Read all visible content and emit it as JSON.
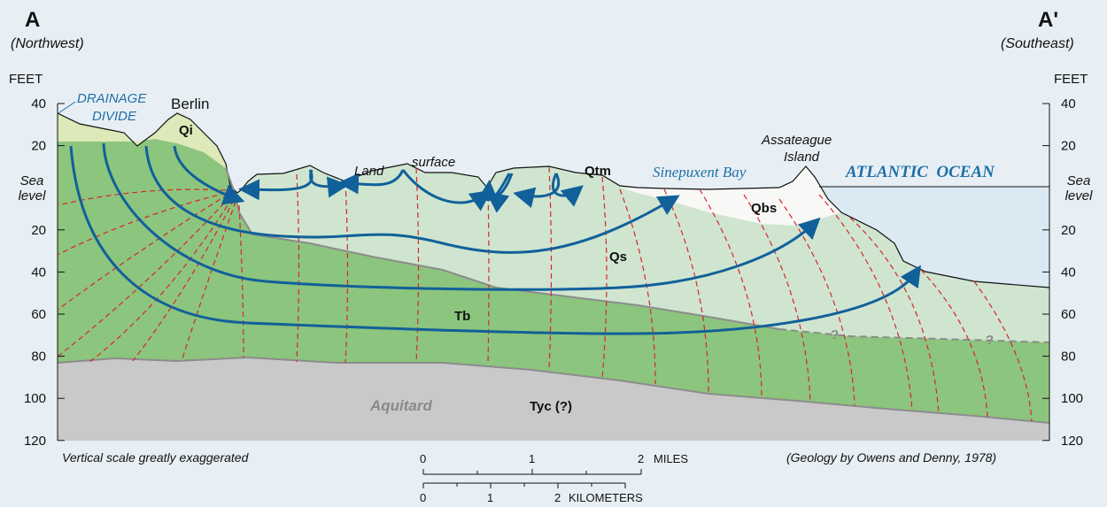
{
  "ends": {
    "left": {
      "label": "A",
      "direction": "(Northwest)"
    },
    "right": {
      "label": "A'",
      "direction": "(Southeast)"
    }
  },
  "axis": {
    "unit": "FEET",
    "ticks_above": [
      "40",
      "20"
    ],
    "sea_level": [
      "Sea",
      "level"
    ],
    "ticks_below": [
      "20",
      "40",
      "60",
      "80",
      "100",
      "120"
    ]
  },
  "labels": {
    "drainage_divide": [
      "DRAINAGE",
      "DIVIDE"
    ],
    "berlin": "Berlin",
    "land": "Land",
    "surface": "surface",
    "sinepuxent": "Sinepuxent Bay",
    "assateague": [
      "Assateague",
      "Island"
    ],
    "ocean": "ATLANTIC  OCEAN"
  },
  "units": {
    "qi": "Qi",
    "qtm": "Qtm",
    "qbs": "Qbs",
    "qs": "Qs",
    "tb": "Tb",
    "aquitard": "Aquitard",
    "tyc": "Tyc (?)",
    "query": [
      "?",
      "?"
    ]
  },
  "notes": {
    "vertical": "Vertical scale greatly exaggerated",
    "credit": "(Geology by Owens and Denny, 1978)"
  },
  "scale": {
    "miles": [
      "0",
      "1",
      "2"
    ],
    "miles_unit": "MILES",
    "km": [
      "0",
      "1",
      "2"
    ],
    "km_unit": "KILOMETERS"
  }
}
